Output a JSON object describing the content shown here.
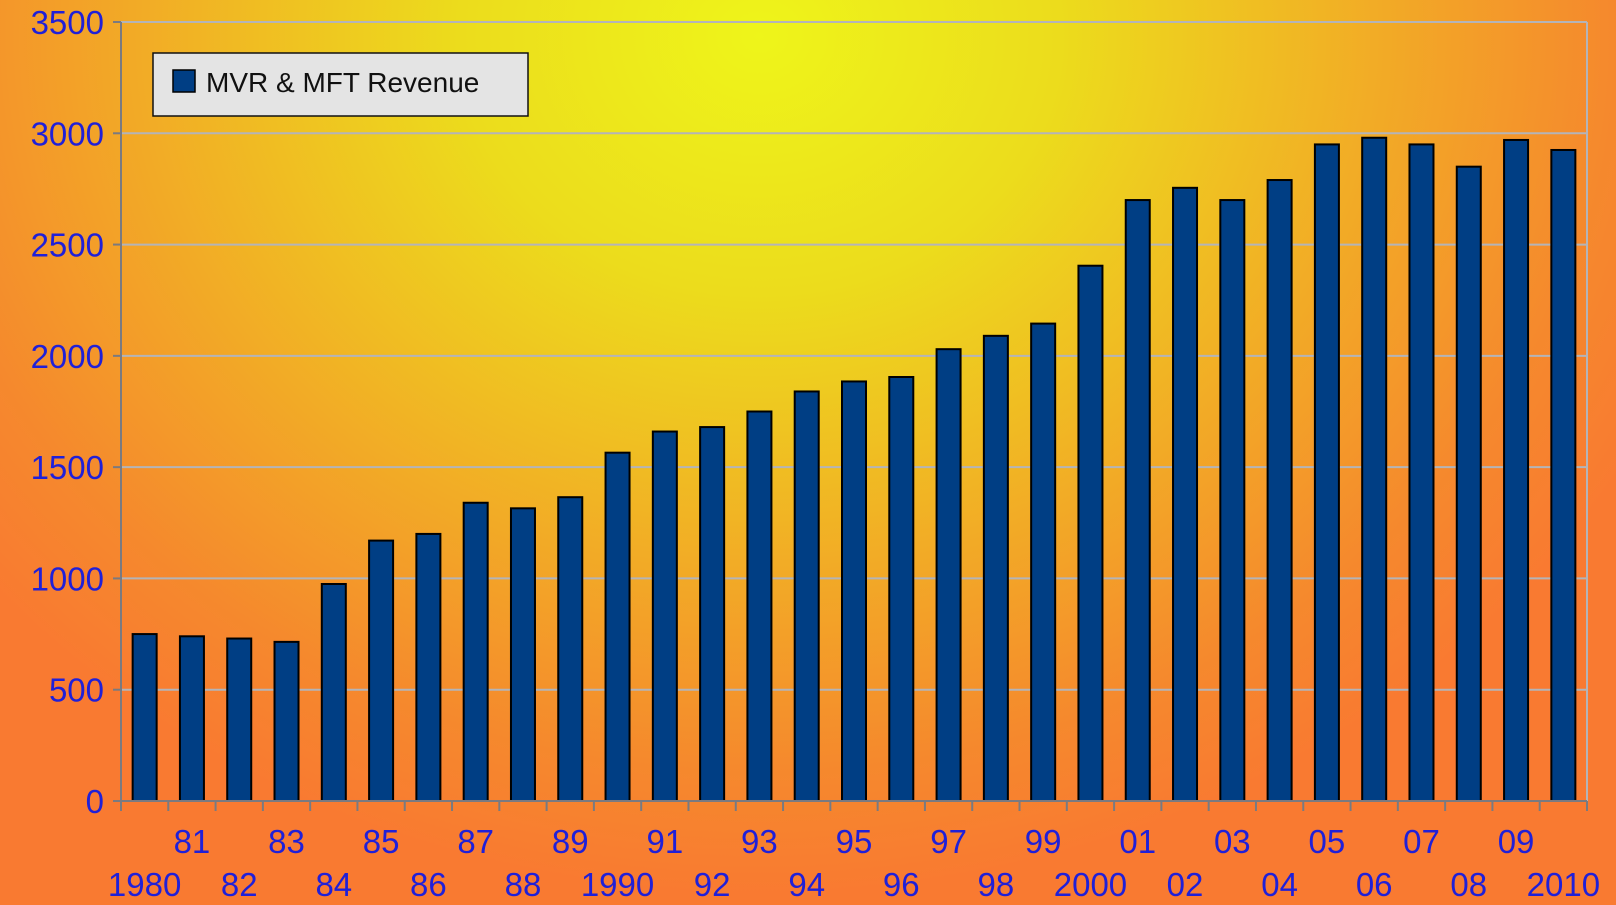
{
  "chart_data": {
    "type": "bar",
    "title": "",
    "xlabel": "",
    "ylabel": "",
    "ylim": [
      0,
      3500
    ],
    "yticks": [
      "0",
      "500",
      "1000",
      "1500",
      "2000",
      "2500",
      "3000",
      "3500"
    ],
    "grid": true,
    "legend_position": "top-left",
    "categories": [
      "1980",
      "81",
      "82",
      "83",
      "84",
      "85",
      "86",
      "87",
      "88",
      "89",
      "1990",
      "91",
      "92",
      "93",
      "94",
      "95",
      "96",
      "97",
      "98",
      "99",
      "2000",
      "01",
      "02",
      "03",
      "04",
      "05",
      "06",
      "07",
      "08",
      "09",
      "2010"
    ],
    "series": [
      {
        "name": "MVR & MFT Revenue",
        "color": "#003e84",
        "values": [
          750,
          740,
          730,
          715,
          975,
          1170,
          1200,
          1340,
          1315,
          1365,
          1565,
          1660,
          1680,
          1750,
          1840,
          1885,
          1905,
          2030,
          2090,
          2145,
          2405,
          2700,
          2755,
          2700,
          2790,
          2950,
          2980,
          2950,
          2850,
          2970,
          2925
        ]
      }
    ]
  }
}
